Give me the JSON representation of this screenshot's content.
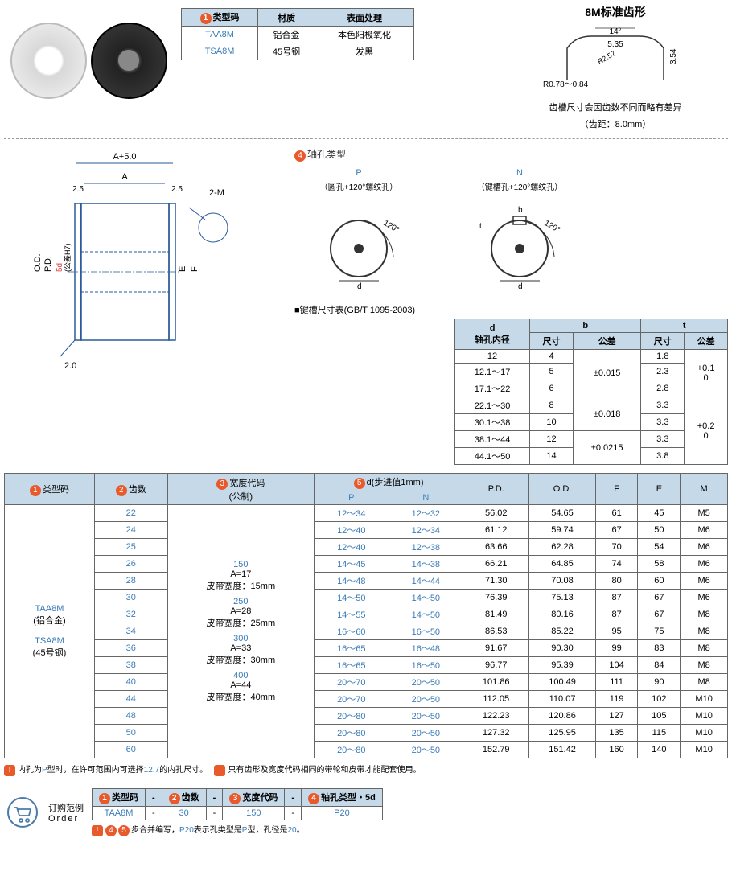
{
  "material_table": {
    "headers": [
      "类型码",
      "材质",
      "表面处理"
    ],
    "rows": [
      [
        "TAA8M",
        "铝合金",
        "本色阳极氧化"
      ],
      [
        "TSA8M",
        "45号钢",
        "发黑"
      ]
    ]
  },
  "tooth": {
    "title": "8M标准齿形",
    "angle": "14°",
    "dim1": "5.35",
    "dim2": "R2.57",
    "dim3": "3.54",
    "dim4": "R0.78～0.84",
    "note1": "齿槽尺寸会因齿数不同而略有差异",
    "note2": "（齿距：8.0mm）"
  },
  "dimension_labels": {
    "a5": "A+5.0",
    "a": "A",
    "s25": "2.5",
    "m2": "2-M",
    "pd": "P.D.",
    "od": "O.D.",
    "d5": "5d",
    "tol": "(公差H7)",
    "e": "E",
    "f": "F",
    "s20": "2.0"
  },
  "hole": {
    "title": "轴孔类型",
    "p_label": "P",
    "p_sub": "（圆孔+120°螺纹孔）",
    "n_label": "N",
    "n_sub": "（键槽孔+120°螺纹孔）",
    "angle": "120°",
    "d": "d",
    "b": "b",
    "t": "t"
  },
  "key_table": {
    "title": "■键槽尺寸表(GB/T 1095-2003)",
    "h1": "d",
    "h1s": "轴孔内径",
    "h2": "b",
    "h3": "t",
    "sub": [
      "尺寸",
      "公差",
      "尺寸",
      "公差"
    ],
    "rows": [
      {
        "d": "12",
        "bs": "4",
        "bt": "±0.015",
        "ts": "1.8",
        "tt": "+0.1\n0",
        "bspan": 3,
        "tspan": 3
      },
      {
        "d": "12.1～17",
        "bs": "5",
        "ts": "2.3"
      },
      {
        "d": "17.1～22",
        "bs": "6",
        "ts": "2.8"
      },
      {
        "d": "22.1～30",
        "bs": "8",
        "bt": "±0.018",
        "ts": "3.3",
        "tt": "+0.2\n0",
        "bspan": 2,
        "tspan": 4
      },
      {
        "d": "30.1～38",
        "bs": "10",
        "ts": "3.3"
      },
      {
        "d": "38.1～44",
        "bs": "12",
        "bt": "±0.0215",
        "ts": "3.3",
        "bspan": 2
      },
      {
        "d": "44.1～50",
        "bs": "14",
        "ts": "3.8"
      }
    ]
  },
  "main": {
    "headers": [
      "类型码",
      "齿数",
      "宽度代码\n(公制)",
      "d(步进值1mm)",
      "P.D.",
      "O.D.",
      "F",
      "E",
      "M"
    ],
    "sub_d": [
      "P",
      "N"
    ],
    "type_label": "TAA8M\n(铝合金)\n\nTSA8M\n(45号钢)",
    "width_blocks": [
      "150\nA=17\n皮带宽度：15mm",
      "250\nA=28\n皮带宽度：25mm",
      "300\nA=33\n皮带宽度：30mm",
      "400\nA=44\n皮带宽度：40mm"
    ],
    "rows": [
      {
        "teeth": "22",
        "p": "12～34",
        "n": "12～32",
        "pd": "56.02",
        "od": "54.65",
        "f": "61",
        "e": "45",
        "m": "M5"
      },
      {
        "teeth": "24",
        "p": "12～40",
        "n": "12～34",
        "pd": "61.12",
        "od": "59.74",
        "f": "67",
        "e": "50",
        "m": "M6"
      },
      {
        "teeth": "25",
        "p": "12～40",
        "n": "12～38",
        "pd": "63.66",
        "od": "62.28",
        "f": "70",
        "e": "54",
        "m": "M6"
      },
      {
        "teeth": "26",
        "p": "14～45",
        "n": "14～38",
        "pd": "66.21",
        "od": "64.85",
        "f": "74",
        "e": "58",
        "m": "M6"
      },
      {
        "teeth": "28",
        "p": "14～48",
        "n": "14～44",
        "pd": "71.30",
        "od": "70.08",
        "f": "80",
        "e": "60",
        "m": "M6"
      },
      {
        "teeth": "30",
        "p": "14～50",
        "n": "14～50",
        "pd": "76.39",
        "od": "75.13",
        "f": "87",
        "e": "67",
        "m": "M6"
      },
      {
        "teeth": "32",
        "p": "14～55",
        "n": "14～50",
        "pd": "81.49",
        "od": "80.16",
        "f": "87",
        "e": "67",
        "m": "M8"
      },
      {
        "teeth": "34",
        "p": "16～60",
        "n": "16～50",
        "pd": "86.53",
        "od": "85.22",
        "f": "95",
        "e": "75",
        "m": "M8"
      },
      {
        "teeth": "36",
        "p": "16～65",
        "n": "16～48",
        "pd": "91.67",
        "od": "90.30",
        "f": "99",
        "e": "83",
        "m": "M8"
      },
      {
        "teeth": "38",
        "p": "16～65",
        "n": "16～50",
        "pd": "96.77",
        "od": "95.39",
        "f": "104",
        "e": "84",
        "m": "M8"
      },
      {
        "teeth": "40",
        "p": "20～70",
        "n": "20～50",
        "pd": "101.86",
        "od": "100.49",
        "f": "111",
        "e": "90",
        "m": "M8"
      },
      {
        "teeth": "44",
        "p": "20～70",
        "n": "20～50",
        "pd": "112.05",
        "od": "110.07",
        "f": "119",
        "e": "102",
        "m": "M10"
      },
      {
        "teeth": "48",
        "p": "20～80",
        "n": "20～50",
        "pd": "122.23",
        "od": "120.86",
        "f": "127",
        "e": "105",
        "m": "M10"
      },
      {
        "teeth": "50",
        "p": "20～80",
        "n": "20～50",
        "pd": "127.32",
        "od": "125.95",
        "f": "135",
        "e": "115",
        "m": "M10"
      },
      {
        "teeth": "60",
        "p": "20～80",
        "n": "20～50",
        "pd": "152.79",
        "od": "151.42",
        "f": "160",
        "e": "140",
        "m": "M10"
      }
    ]
  },
  "notes": {
    "n1": "内孔为P型时，在许可范围内可选择12.7的内孔尺寸。",
    "n2": "只有齿形及宽度代码相同的带轮和皮带才能配套使用。"
  },
  "order": {
    "label1": "订购范例",
    "label2": "Order",
    "headers": [
      "类型码",
      "-",
      "齿数",
      "-",
      "宽度代码",
      "-",
      "轴孔类型・5d"
    ],
    "values": [
      "TAA8M",
      "-",
      "30",
      "-",
      "150",
      "-",
      "P20"
    ],
    "note": "步合并编写，P20表示孔类型是P型，孔径是20。"
  }
}
